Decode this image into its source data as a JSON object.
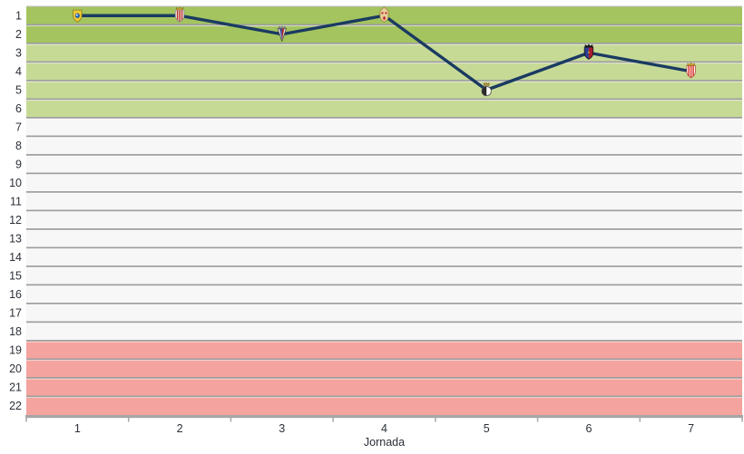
{
  "chart_data": {
    "type": "line",
    "title": "",
    "xlabel": "Jornada",
    "ylabel": "",
    "x": [
      1,
      2,
      3,
      4,
      5,
      6,
      7
    ],
    "x_ticks": [
      "1",
      "2",
      "3",
      "4",
      "5",
      "6",
      "7"
    ],
    "y_ticks": [
      "1",
      "2",
      "3",
      "4",
      "5",
      "6",
      "7",
      "8",
      "9",
      "10",
      "11",
      "12",
      "13",
      "14",
      "15",
      "16",
      "17",
      "18",
      "19",
      "20",
      "21",
      "22"
    ],
    "ylim": [
      1,
      22
    ],
    "y_axis_inverted": true,
    "grid": true,
    "legend": false,
    "series": [
      {
        "name": "posicion-por-jornada",
        "values": [
          1,
          1,
          2,
          1,
          5,
          3,
          4
        ]
      }
    ],
    "zones": [
      {
        "name": "zone-green-dark",
        "row_start": 1,
        "row_end": 2,
        "color": "#a3c45e"
      },
      {
        "name": "zone-green-light",
        "row_start": 3,
        "row_end": 6,
        "color": "#c6da96"
      },
      {
        "name": "zone-neutral",
        "row_start": 7,
        "row_end": 18,
        "color": "#f7f7f7"
      },
      {
        "name": "zone-red",
        "row_start": 19,
        "row_end": 22,
        "color": "#f5a39e"
      }
    ],
    "colors": {
      "line": "#1a3a62",
      "gridline": "#9e9e9e",
      "grid_highlight": "rgba(255,255,255,0.75)",
      "axis": "#a6a6a6",
      "labels": "#2b3038",
      "background": "#ffffff"
    },
    "markers": [
      {
        "jornada": 1,
        "position": 1,
        "crest": "yellow-shield-blue-emblem",
        "colors": [
          "#eec832",
          "#1e5fae"
        ]
      },
      {
        "jornada": 2,
        "position": 1,
        "crest": "white-shield-red-stripes-crown",
        "colors": [
          "#f2f2f2",
          "#c0392b",
          "#c9a227"
        ]
      },
      {
        "jornada": 3,
        "position": 2,
        "crest": "pennant-blue-red-grey-crown",
        "colors": [
          "#e8e8e8",
          "#2c418f",
          "#b02a2a",
          "#8c8c8c"
        ]
      },
      {
        "jornada": 4,
        "position": 1,
        "crest": "tan-mitre-red-dots",
        "colors": [
          "#e5d09b",
          "#cc2430"
        ]
      },
      {
        "jornada": 5,
        "position": 5,
        "crest": "circle-half-black-white-crown",
        "colors": [
          "#2b2b2b",
          "#ffffff",
          "#b8903e"
        ]
      },
      {
        "jornada": 6,
        "position": 3,
        "crest": "shield-blue-red-halves-dark-crown",
        "colors": [
          "#2c3f94",
          "#a91d2c",
          "#1a1a1a"
        ]
      },
      {
        "jornada": 7,
        "position": 4,
        "crest": "red-white-striped-shield-gold-crown",
        "colors": [
          "#ffffff",
          "#d93a2f",
          "#c9a227"
        ]
      }
    ]
  }
}
